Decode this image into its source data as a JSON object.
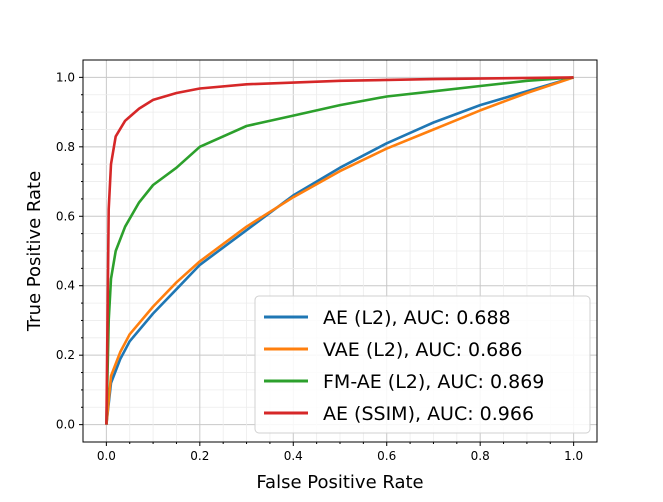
{
  "chart_data": {
    "type": "line",
    "title": "",
    "xlabel": "False Positive Rate",
    "ylabel": "True Positive Rate",
    "xlim": [
      -0.05,
      1.05
    ],
    "ylim": [
      -0.05,
      1.05
    ],
    "xticks": [
      "0.0",
      "0.2",
      "0.4",
      "0.6",
      "0.8",
      "1.0"
    ],
    "yticks": [
      "0.0",
      "0.2",
      "0.4",
      "0.6",
      "0.8",
      "1.0"
    ],
    "grid": true,
    "minor_grid": true,
    "legend_position": "lower-right",
    "series": [
      {
        "name": "AE (L2), AUC: 0.688",
        "color": "#1f77b4",
        "x": [
          0,
          0.01,
          0.03,
          0.05,
          0.1,
          0.15,
          0.2,
          0.3,
          0.4,
          0.5,
          0.6,
          0.7,
          0.8,
          0.9,
          1
        ],
        "y": [
          0,
          0.12,
          0.19,
          0.24,
          0.32,
          0.39,
          0.46,
          0.56,
          0.66,
          0.74,
          0.81,
          0.87,
          0.92,
          0.96,
          1
        ]
      },
      {
        "name": "VAE (L2), AUC: 0.686",
        "color": "#ff7f0e",
        "x": [
          0,
          0.01,
          0.03,
          0.05,
          0.1,
          0.15,
          0.2,
          0.3,
          0.4,
          0.5,
          0.6,
          0.7,
          0.8,
          0.9,
          1
        ],
        "y": [
          0,
          0.14,
          0.21,
          0.26,
          0.34,
          0.41,
          0.47,
          0.57,
          0.655,
          0.73,
          0.795,
          0.85,
          0.905,
          0.955,
          1
        ]
      },
      {
        "name": "FM-AE (L2), AUC: 0.869",
        "color": "#2ca02c",
        "x": [
          0,
          0.005,
          0.01,
          0.02,
          0.04,
          0.07,
          0.1,
          0.15,
          0.2,
          0.3,
          0.4,
          0.5,
          0.6,
          0.7,
          0.8,
          0.9,
          1
        ],
        "y": [
          0,
          0.3,
          0.42,
          0.5,
          0.57,
          0.64,
          0.69,
          0.74,
          0.8,
          0.86,
          0.89,
          0.92,
          0.945,
          0.96,
          0.975,
          0.99,
          1
        ]
      },
      {
        "name": "AE (SSIM), AUC: 0.966",
        "color": "#d62728",
        "x": [
          0,
          0.005,
          0.01,
          0.02,
          0.04,
          0.07,
          0.1,
          0.15,
          0.2,
          0.3,
          0.5,
          0.7,
          1
        ],
        "y": [
          0,
          0.62,
          0.75,
          0.83,
          0.875,
          0.91,
          0.935,
          0.955,
          0.968,
          0.98,
          0.99,
          0.995,
          1
        ]
      }
    ]
  }
}
